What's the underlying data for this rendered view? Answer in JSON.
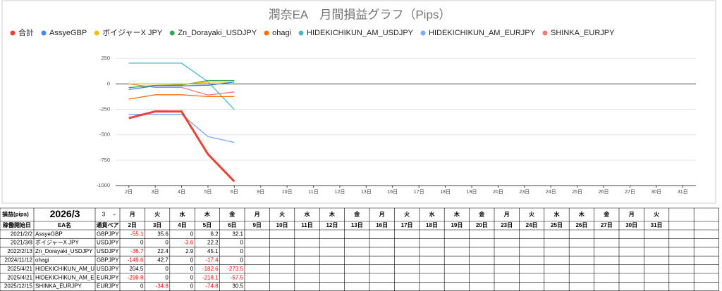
{
  "chart_data": {
    "type": "line",
    "title": "潤奈EA　月間損益グラフ（Pips）",
    "categories": [
      "2日",
      "3日",
      "4日",
      "5日",
      "6日",
      "9日",
      "10日",
      "11日",
      "12日",
      "13日",
      "16日",
      "17日",
      "18日",
      "19日",
      "20日",
      "23日",
      "24日",
      "25日",
      "26日",
      "27日",
      "30日",
      "31日"
    ],
    "series": [
      {
        "name": "合計",
        "color": "#ea4335",
        "values": [
          -336.7,
          -270.8,
          -271.5,
          -690.9,
          -959.3,
          null,
          null,
          null,
          null,
          null,
          null,
          null,
          null,
          null,
          null,
          null,
          null,
          null,
          null,
          null,
          null,
          null
        ]
      },
      {
        "name": "AssyeGBP",
        "color": "#4285f4",
        "values": [
          -55.1,
          -19.5,
          -19.5,
          -13.3,
          18.8,
          null,
          null,
          null,
          null,
          null,
          null,
          null,
          null,
          null,
          null,
          null,
          null,
          null,
          null,
          null,
          null,
          null
        ]
      },
      {
        "name": "ボイジャーX JPY",
        "color": "#fbbc04",
        "values": [
          0,
          0,
          -3.6,
          18.6,
          18.6,
          null,
          null,
          null,
          null,
          null,
          null,
          null,
          null,
          null,
          null,
          null,
          null,
          null,
          null,
          null,
          null,
          null
        ]
      },
      {
        "name": "Zn_Dorayaki_USDJPY",
        "color": "#34a853",
        "values": [
          -36.7,
          -14.3,
          -11.4,
          33.7,
          33.7,
          null,
          null,
          null,
          null,
          null,
          null,
          null,
          null,
          null,
          null,
          null,
          null,
          null,
          null,
          null,
          null,
          null
        ]
      },
      {
        "name": "ohagi",
        "color": "#ff6d01",
        "values": [
          -149.6,
          -106.9,
          -106.9,
          -124.3,
          -124.3,
          null,
          null,
          null,
          null,
          null,
          null,
          null,
          null,
          null,
          null,
          null,
          null,
          null,
          null,
          null,
          null,
          null
        ]
      },
      {
        "name": "HIDEKICHIKUN_AM_USDJPY",
        "color": "#46bdc6",
        "values": [
          204.5,
          204.5,
          204.5,
          21.9,
          -251.6,
          null,
          null,
          null,
          null,
          null,
          null,
          null,
          null,
          null,
          null,
          null,
          null,
          null,
          null,
          null,
          null,
          null
        ]
      },
      {
        "name": "HIDEKICHIKUN_AM_EURJPY",
        "color": "#7baaf7",
        "values": [
          -299.8,
          -299.8,
          -299.8,
          -517.9,
          -575.4,
          null,
          null,
          null,
          null,
          null,
          null,
          null,
          null,
          null,
          null,
          null,
          null,
          null,
          null,
          null,
          null,
          null
        ]
      },
      {
        "name": "SHINKA_EURJPY",
        "color": "#f07b72",
        "values": [
          0,
          -34.8,
          -34.8,
          -109.6,
          -79.1,
          null,
          null,
          null,
          null,
          null,
          null,
          null,
          null,
          null,
          null,
          null,
          null,
          null,
          null,
          null,
          null,
          null
        ]
      }
    ],
    "ylim": [
      -1000,
      300
    ],
    "yticks": [
      -1000,
      -750,
      -500,
      -250,
      0,
      250
    ],
    "grid": true
  },
  "table": {
    "header": [
      "損益(pips)",
      "2026/3",
      "3"
    ],
    "weekdays": [
      "月",
      "火",
      "水",
      "木",
      "金",
      "月",
      "火",
      "水",
      "木",
      "金",
      "月",
      "火",
      "水",
      "木",
      "金",
      "月",
      "火",
      "水",
      "木",
      "金",
      "月",
      "火"
    ],
    "columns": [
      "稼働開始日",
      "EA名",
      "通貨ペア"
    ],
    "rows": [
      {
        "start": "2021/2/2",
        "name": "AssyeGBP",
        "pair": "GBPJPY",
        "values": [
          -55.1,
          35.6,
          0,
          6.2,
          32.1
        ]
      },
      {
        "start": "2021/3/8",
        "name": "ボイジャーX JPY",
        "pair": "USDJPY",
        "values": [
          0,
          0,
          -3.6,
          22.2,
          0
        ]
      },
      {
        "start": "2022/2/13",
        "name": "Zn_Dorayaki_USDJPY",
        "pair": "USDJPY",
        "values": [
          -36.7,
          22.4,
          2.9,
          45.1,
          0
        ]
      },
      {
        "start": "2024/11/12",
        "name": "ohagi",
        "pair": "GBPJPY",
        "values": [
          -149.6,
          42.7,
          0,
          -17.4,
          0
        ]
      },
      {
        "start": "2025/4/21",
        "name": "HIDEKICHIKUN_AM_USDJPY",
        "pair": "USDJPY",
        "values": [
          204.5,
          0,
          0,
          -182.6,
          -273.5
        ]
      },
      {
        "start": "2025/4/21",
        "name": "HIDEKICHIKUN_AM_EURJPY",
        "pair": "EURJPY",
        "values": [
          -299.8,
          0,
          0,
          -218.1,
          -57.5
        ]
      },
      {
        "start": "2025/12/15",
        "name": "SHINKA_EURJPY",
        "pair": "EURJPY",
        "values": [
          0,
          -34.8,
          0,
          -74.8,
          30.5
        ]
      }
    ]
  }
}
